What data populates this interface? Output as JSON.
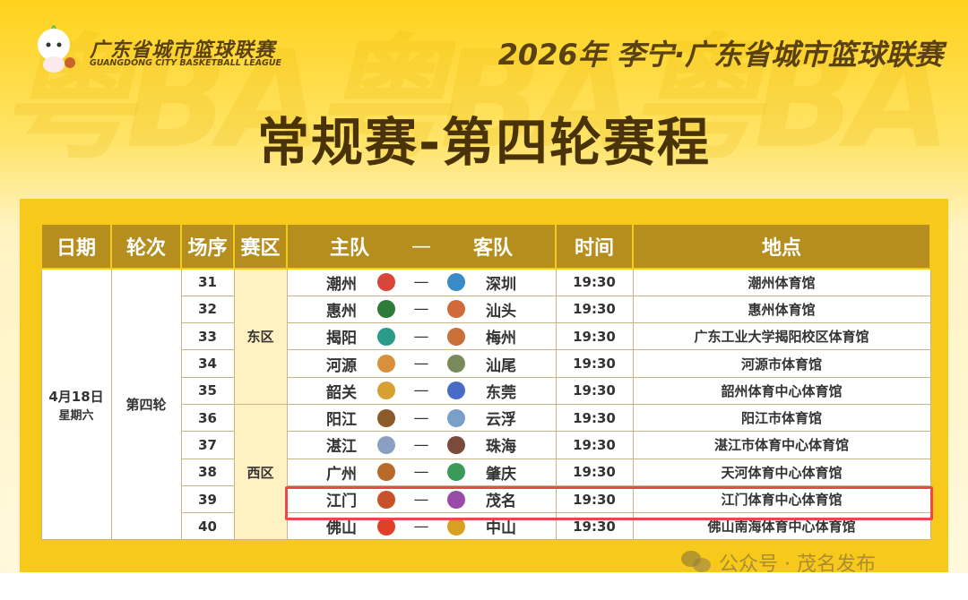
{
  "header": {
    "watermark": "粤BA粤BA粤BA",
    "brand_cn": "广东省城市篮球联赛",
    "brand_en": "GUANGDONG CITY BASKETBALL LEAGUE",
    "top_title": "2026年 李宁·广东省城市篮球联赛",
    "main_title": "常规赛-第四轮赛程"
  },
  "table": {
    "columns": [
      "日期",
      "轮次",
      "场序",
      "赛区",
      "主队",
      "—",
      "客队",
      "时间",
      "地点"
    ],
    "date": "4月18日",
    "weekday": "星期六",
    "round": "第四轮",
    "zones": [
      "东区",
      "西区"
    ],
    "rows": [
      {
        "no": "31",
        "home": "潮州",
        "away": "深圳",
        "time": "19:30",
        "venue": "潮州体育馆",
        "home_color": "#D8453A",
        "away_color": "#3A8CC8"
      },
      {
        "no": "32",
        "home": "惠州",
        "away": "汕头",
        "time": "19:30",
        "venue": "惠州体育馆",
        "home_color": "#2E7A3A",
        "away_color": "#D06A3A"
      },
      {
        "no": "33",
        "home": "揭阳",
        "away": "梅州",
        "time": "19:30",
        "venue": "广东工业大学揭阳校区体育馆",
        "home_color": "#2A9A8A",
        "away_color": "#C8703A"
      },
      {
        "no": "34",
        "home": "河源",
        "away": "汕尾",
        "time": "19:30",
        "venue": "河源市体育馆",
        "home_color": "#D8903A",
        "away_color": "#7A8A5A"
      },
      {
        "no": "35",
        "home": "韶关",
        "away": "东莞",
        "time": "19:30",
        "venue": "韶州体育中心体育馆",
        "home_color": "#D8A030",
        "away_color": "#4A6AC8"
      },
      {
        "no": "36",
        "home": "阳江",
        "away": "云浮",
        "time": "19:30",
        "venue": "阳江市体育馆",
        "home_color": "#8A5A2A",
        "away_color": "#7AA0C8"
      },
      {
        "no": "37",
        "home": "湛江",
        "away": "珠海",
        "time": "19:30",
        "venue": "湛江市体育中心体育馆",
        "home_color": "#8AA0C0",
        "away_color": "#7A4A3A"
      },
      {
        "no": "38",
        "home": "广州",
        "away": "肇庆",
        "time": "19:30",
        "venue": "天河体育中心体育馆",
        "home_color": "#B86A2A",
        "away_color": "#3A9A5A"
      },
      {
        "no": "39",
        "home": "江门",
        "away": "茂名",
        "time": "19:30",
        "venue": "江门体育中心体育馆",
        "home_color": "#C8502A",
        "away_color": "#9A4AA8"
      },
      {
        "no": "40",
        "home": "佛山",
        "away": "中山",
        "time": "19:30",
        "venue": "佛山南海体育中心体育馆",
        "home_color": "#E0402A",
        "away_color": "#D8A020"
      }
    ]
  },
  "highlight_color": "#F0454B",
  "footer": {
    "text": "公众号 · 茂名发布"
  }
}
